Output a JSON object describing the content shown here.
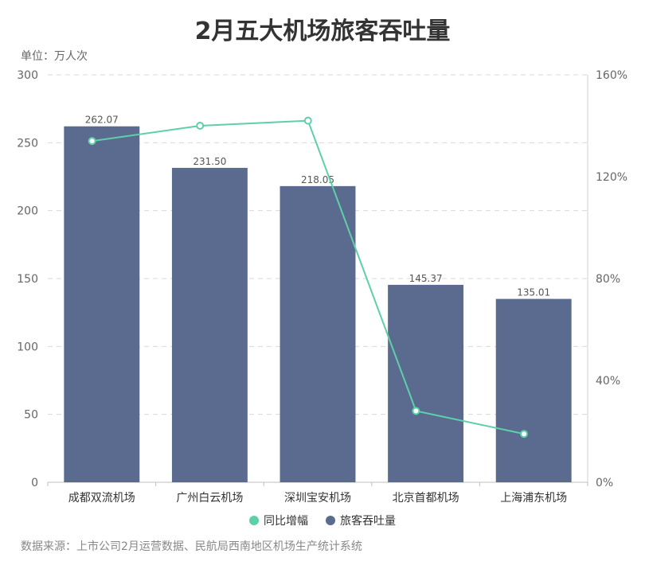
{
  "title": "2月五大机场旅客吞吐量",
  "unit_label": "单位：万人次",
  "source": "数据来源：上市公司2月运营数据、民航局西南地区机场生产统计系统",
  "colors": {
    "bar": "#5a6b8f",
    "line": "#5ed0a8",
    "grid": "#d9d9d9",
    "axis_text": "#666666"
  },
  "legend": [
    {
      "label": "同比增幅",
      "color": "#5ed0a8"
    },
    {
      "label": "旅客吞吐量",
      "color": "#5a6b8f"
    }
  ],
  "chart_data": {
    "type": "bar",
    "title": "2月五大机场旅客吞吐量",
    "categories": [
      "成都双流机场",
      "广州白云机场",
      "深圳宝安机场",
      "北京首都机场",
      "上海浦东机场"
    ],
    "series": [
      {
        "name": "旅客吞吐量",
        "type": "bar",
        "axis": "left",
        "values": [
          262.07,
          231.5,
          218.05,
          145.37,
          135.01
        ],
        "labels": [
          "262.07",
          "231.50",
          "218.05",
          "145.37",
          "135.01"
        ]
      },
      {
        "name": "同比增幅",
        "type": "line",
        "axis": "right",
        "values": [
          134,
          140,
          142,
          28,
          19
        ]
      }
    ],
    "y_left": {
      "min": 0,
      "max": 300,
      "ticks": [
        0,
        50,
        100,
        150,
        200,
        250,
        300
      ],
      "tick_labels": [
        "0",
        "50",
        "100",
        "150",
        "200",
        "250",
        "300"
      ]
    },
    "y_right": {
      "min": 0,
      "max": 160,
      "ticks": [
        0,
        40,
        80,
        120,
        160
      ],
      "tick_labels": [
        "0%",
        "40%",
        "80%",
        "120%",
        "160%"
      ]
    },
    "grid": true,
    "legend_position": "bottom"
  }
}
